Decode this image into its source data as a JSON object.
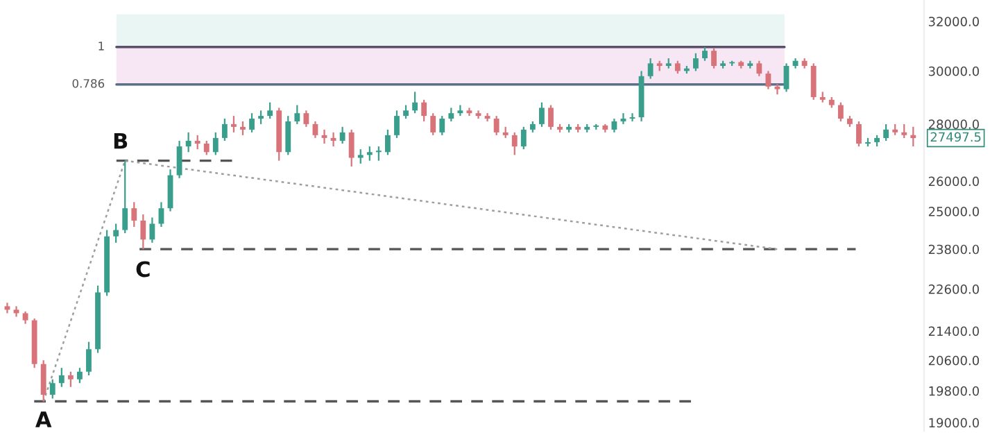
{
  "chart_data": {
    "type": "candlestick",
    "log": true,
    "categories": [
      null,
      null,
      null,
      null,
      null,
      null,
      null,
      null,
      null,
      null,
      null,
      null,
      null,
      null,
      null,
      null,
      null,
      null,
      null,
      null,
      null,
      null,
      null,
      null,
      null,
      null,
      null,
      null,
      null,
      null,
      null,
      null,
      null,
      null,
      null,
      null,
      null,
      null,
      null,
      null,
      null,
      null,
      null,
      null,
      null,
      null,
      null,
      null,
      null,
      null,
      null,
      null,
      null,
      null,
      null,
      null,
      null,
      null,
      null,
      null,
      null,
      null,
      null,
      null,
      null,
      null,
      null,
      null,
      null,
      null,
      null,
      null,
      null,
      null,
      null,
      null,
      null,
      null,
      null,
      null,
      null,
      null,
      null,
      null,
      null,
      null,
      null,
      null,
      null,
      null,
      null,
      null,
      null,
      null,
      null,
      null,
      null,
      null,
      null,
      null,
      null
    ],
    "ohlc": [
      [
        22100,
        22200,
        21900,
        22000
      ],
      [
        22000,
        22100,
        21800,
        21900
      ],
      [
        21900,
        21950,
        21600,
        21700
      ],
      [
        21700,
        21750,
        20400,
        20500
      ],
      [
        20500,
        20600,
        19530,
        19700
      ],
      [
        19700,
        20100,
        19600,
        20000
      ],
      [
        20000,
        20400,
        19900,
        20200
      ],
      [
        20200,
        20300,
        19900,
        20100
      ],
      [
        20100,
        20400,
        20000,
        20300
      ],
      [
        20300,
        21100,
        20200,
        20900
      ],
      [
        20900,
        22700,
        20800,
        22500
      ],
      [
        22500,
        24400,
        22400,
        24200
      ],
      [
        24200,
        24600,
        24000,
        24400
      ],
      [
        24400,
        26700,
        24300,
        25100
      ],
      [
        25100,
        25300,
        24500,
        24700
      ],
      [
        24700,
        24900,
        23800,
        24100
      ],
      [
        24100,
        24800,
        24000,
        24600
      ],
      [
        24600,
        25300,
        24500,
        25100
      ],
      [
        25100,
        26400,
        25000,
        26200
      ],
      [
        26200,
        27400,
        26100,
        27200
      ],
      [
        27200,
        27700,
        27000,
        27400
      ],
      [
        27400,
        27600,
        27100,
        27300
      ],
      [
        27300,
        27400,
        26900,
        27000
      ],
      [
        27000,
        27700,
        26900,
        27500
      ],
      [
        27500,
        28200,
        27400,
        28000
      ],
      [
        28000,
        28300,
        27700,
        27900
      ],
      [
        27900,
        28100,
        27600,
        27800
      ],
      [
        27800,
        28400,
        27700,
        28200
      ],
      [
        28200,
        28500,
        28000,
        28300
      ],
      [
        28300,
        28800,
        28200,
        28500
      ],
      [
        28500,
        28600,
        26700,
        27000
      ],
      [
        27000,
        28300,
        26900,
        28100
      ],
      [
        28100,
        28700,
        28000,
        28400
      ],
      [
        28400,
        28500,
        27900,
        28000
      ],
      [
        28000,
        28100,
        27500,
        27600
      ],
      [
        27600,
        27800,
        27300,
        27500
      ],
      [
        27500,
        27700,
        27200,
        27400
      ],
      [
        27400,
        27900,
        27300,
        27700
      ],
      [
        27700,
        27800,
        26500,
        26800
      ],
      [
        26800,
        27100,
        26600,
        26900
      ],
      [
        26900,
        27200,
        26700,
        27000
      ],
      [
        27000,
        27200,
        26700,
        27050
      ],
      [
        27000,
        27800,
        26900,
        27600
      ],
      [
        27600,
        28500,
        27500,
        28300
      ],
      [
        28300,
        28700,
        28200,
        28500
      ],
      [
        28500,
        29200,
        28400,
        28800
      ],
      [
        28800,
        28900,
        28100,
        28300
      ],
      [
        28300,
        28400,
        27600,
        27700
      ],
      [
        27700,
        28300,
        27600,
        28200
      ],
      [
        28200,
        28600,
        28100,
        28400
      ],
      [
        28400,
        28700,
        28300,
        28500
      ],
      [
        28500,
        28600,
        28300,
        28400
      ],
      [
        28400,
        28500,
        28200,
        28300
      ],
      [
        28300,
        28400,
        28100,
        28200
      ],
      [
        28200,
        28300,
        27600,
        27700
      ],
      [
        27700,
        27900,
        27500,
        27600
      ],
      [
        27600,
        27700,
        26900,
        27200
      ],
      [
        27200,
        27900,
        27100,
        27800
      ],
      [
        27800,
        28100,
        27700,
        28000
      ],
      [
        28000,
        28800,
        27900,
        28600
      ],
      [
        28600,
        28700,
        27800,
        27900
      ],
      [
        27900,
        28000,
        27700,
        27800
      ],
      [
        27800,
        28000,
        27700,
        27900
      ],
      [
        27900,
        28000,
        27700,
        27800
      ],
      [
        27800,
        28000,
        27700,
        27900
      ],
      [
        27900,
        28000,
        27800,
        27950
      ],
      [
        27950,
        28000,
        27700,
        27800
      ],
      [
        27800,
        28200,
        27700,
        28100
      ],
      [
        28100,
        28400,
        28000,
        28200
      ],
      [
        28200,
        28400,
        28100,
        28250
      ],
      [
        28250,
        30000,
        28100,
        29800
      ],
      [
        29800,
        30500,
        29700,
        30300
      ],
      [
        30300,
        30400,
        30000,
        30200
      ],
      [
        30200,
        30500,
        30100,
        30300
      ],
      [
        30300,
        30400,
        29900,
        30000
      ],
      [
        30000,
        30200,
        29900,
        30100
      ],
      [
        30100,
        30700,
        30000,
        30500
      ],
      [
        30500,
        30950,
        30400,
        30800
      ],
      [
        30800,
        30900,
        30100,
        30200
      ],
      [
        30200,
        30400,
        30100,
        30300
      ],
      [
        30300,
        30400,
        30200,
        30350
      ],
      [
        30350,
        30400,
        30100,
        30200
      ],
      [
        30200,
        30400,
        30100,
        30300
      ],
      [
        30300,
        30400,
        29800,
        29900
      ],
      [
        29900,
        30000,
        29300,
        29400
      ],
      [
        29400,
        29500,
        29100,
        29300
      ],
      [
        29300,
        30300,
        29200,
        30200
      ],
      [
        30200,
        30500,
        30100,
        30400
      ],
      [
        30400,
        30500,
        30100,
        30200
      ],
      [
        30200,
        30300,
        28900,
        29000
      ],
      [
        29000,
        29200,
        28800,
        28900
      ],
      [
        28900,
        29000,
        28600,
        28700
      ],
      [
        28700,
        28800,
        28100,
        28200
      ],
      [
        28200,
        28300,
        27900,
        28000
      ],
      [
        28000,
        28100,
        27200,
        27300
      ],
      [
        27300,
        27500,
        27200,
        27350
      ],
      [
        27350,
        27600,
        27200,
        27500
      ],
      [
        27500,
        28000,
        27400,
        27800
      ],
      [
        27800,
        28000,
        27600,
        27700
      ],
      [
        27700,
        28000,
        27500,
        27600
      ],
      [
        27600,
        27900,
        27200,
        27497.5
      ]
    ],
    "series": [
      {
        "type": "line",
        "values": [
          null,
          null,
          null,
          null,
          19530,
          null,
          null,
          null,
          null,
          null,
          null,
          null,
          null,
          26700,
          null,
          null,
          null,
          null,
          null,
          null,
          null,
          null,
          null,
          null,
          null,
          null,
          null,
          null,
          null,
          null,
          null,
          null,
          null,
          null,
          null,
          null,
          null,
          null,
          null,
          null,
          null,
          null,
          null,
          null,
          null,
          null,
          null,
          null,
          null,
          null,
          null,
          null,
          null,
          null,
          null,
          null,
          null,
          null,
          null,
          null,
          null,
          null,
          null,
          null,
          null,
          null,
          null,
          null,
          null,
          null,
          null,
          null,
          null,
          null,
          null,
          null,
          null,
          null,
          null,
          null,
          null,
          null,
          null,
          null,
          null,
          null,
          null,
          null,
          null,
          null,
          null,
          null,
          null,
          null,
          null,
          null,
          null,
          null,
          null,
          null,
          null
        ],
        "color": "#9e9e9e",
        "line_style": "dotted"
      },
      {
        "type": "line",
        "values": [
          null,
          null,
          null,
          null,
          null,
          null,
          null,
          null,
          null,
          null,
          null,
          null,
          null,
          26700,
          null,
          null,
          null,
          null,
          null,
          null,
          null,
          null,
          null,
          null,
          null,
          null,
          null,
          null,
          null,
          null,
          null,
          null,
          null,
          null,
          null,
          null,
          null,
          null,
          null,
          null,
          null,
          null,
          null,
          null,
          null,
          null,
          null,
          null,
          null,
          null,
          null,
          null,
          null,
          null,
          null,
          null,
          null,
          null,
          null,
          null,
          null,
          null,
          null,
          null,
          null,
          null,
          null,
          null,
          null,
          null,
          null,
          null,
          null,
          null,
          null,
          null,
          null,
          null,
          null,
          null,
          null,
          null,
          null,
          null,
          null,
          23800,
          null,
          null,
          null,
          null,
          null,
          null,
          null,
          null,
          null,
          null,
          null,
          null,
          null,
          null,
          null
        ],
        "color": "#9e9e9e",
        "line_style": "dotted"
      }
    ],
    "ylim": [
      18800,
      32900
    ],
    "yticks": [
      {
        "value": 19000,
        "label": "19000.0"
      },
      {
        "value": 19800,
        "label": "19800.0"
      },
      {
        "value": 20600,
        "label": "20600.0"
      },
      {
        "value": 21400,
        "label": "21400.0"
      },
      {
        "value": 22600,
        "label": "22600.0"
      },
      {
        "value": 23800,
        "label": "23800.0"
      },
      {
        "value": 25000,
        "label": "25000.0"
      },
      {
        "value": 26000,
        "label": "26000.0"
      },
      {
        "value": 28000,
        "label": "28000.0"
      },
      {
        "value": 30000,
        "label": "30000.0"
      },
      {
        "value": 32000,
        "label": "32000.0"
      }
    ],
    "ref_lines": [
      {
        "axis": "y",
        "value": 30950,
        "color": "#5b4f6b",
        "line_style": "solid"
      },
      {
        "axis": "y",
        "value": 29480,
        "color": "#5b7088",
        "line_style": "solid"
      },
      {
        "axis": "y",
        "value": 19530,
        "color": "#555555",
        "line_style": "dashed"
      },
      {
        "axis": "y",
        "value": 26700,
        "color": "#555555",
        "line_style": "dashed"
      },
      {
        "axis": "y",
        "value": 23800,
        "color": "#555555",
        "line_style": "dashed"
      }
    ],
    "bands": [
      {
        "axis": "y",
        "from": 30950,
        "to": 32300,
        "color": "#eaf6f4"
      },
      {
        "axis": "y",
        "from": 29480,
        "to": 30950,
        "color": "#f7e6f3"
      }
    ],
    "annotations": [
      {
        "text": "A",
        "y": 19530
      },
      {
        "text": "B",
        "y": 26700
      },
      {
        "text": "C",
        "y": 23800
      },
      "1",
      "0.786",
      "27497.5"
    ]
  }
}
